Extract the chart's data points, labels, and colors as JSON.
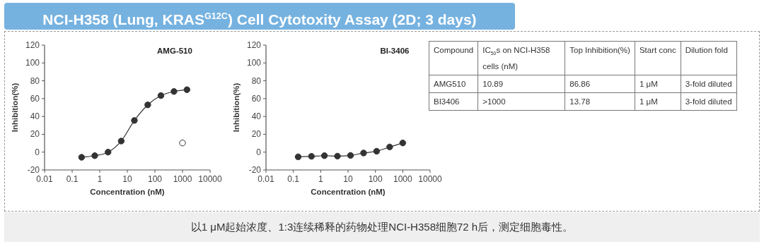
{
  "chart_data": [
    {
      "type": "line",
      "title": "AMG-510",
      "xlabel": "Concentration (nM)",
      "ylabel": "Inhibition(%)",
      "log": "x",
      "xlim": [
        0.01,
        10000
      ],
      "xticks": [
        0.01,
        0.1,
        1,
        10,
        100,
        1000,
        10000
      ],
      "ylim": [
        -20,
        120
      ],
      "yticks": [
        -20,
        0,
        20,
        40,
        60,
        80,
        100,
        120
      ],
      "marker": "circle",
      "grid": false,
      "series": [
        {
          "type": "line",
          "color": "#333333",
          "x": [
            0.22,
            0.66,
            2,
            6,
            18,
            55,
            165,
            490,
            1450
          ],
          "values": [
            -5.8,
            -4,
            0,
            12.4,
            35.5,
            53,
            63.4,
            68,
            70
          ]
        },
        {
          "type": "scatter",
          "color": "#333333",
          "x": [
            1000
          ],
          "values": [
            10.3
          ]
        }
      ]
    },
    {
      "type": "line",
      "title": "BI-3406",
      "xlabel": "Concentration (nM)",
      "ylabel": "Inhibition(%)",
      "log": "x",
      "xlim": [
        0.01,
        10000
      ],
      "xticks": [
        0.01,
        0.1,
        1,
        10,
        100,
        1000,
        10000
      ],
      "ylim": [
        -20,
        120
      ],
      "yticks": [
        -20,
        0,
        20,
        40,
        60,
        80,
        100,
        120
      ],
      "marker": "circle",
      "grid": false,
      "series": [
        {
          "type": "line",
          "color": "#333333",
          "x": [
            0.15,
            0.46,
            1.37,
            4.1,
            12.3,
            37,
            111,
            333,
            1000
          ],
          "values": [
            -5.3,
            -4.7,
            -4,
            -4.5,
            -3.7,
            -1,
            1,
            5.8,
            10.3
          ]
        }
      ]
    },
    {
      "type": "other",
      "title": "NCI-H358 (Lung, KRAS$^{G12C}$) Cell Cytotoxity Assay (2D; 3 days)",
      "categories": [
        "Compound",
        "IC$_{50}$s on NCI-H358 cells (nM)",
        "Top Inhibition(%)",
        "Start conc",
        "Dilution fold"
      ],
      "cells": [
        [
          "AMG510",
          "10.89",
          "86.86",
          "1 μM",
          "3-fold diluted"
        ],
        [
          "BI3406",
          ">1000",
          "13.78",
          "1 μM",
          "3-fold diluted"
        ]
      ],
      "annotations": [
        "以1 μM起始浓度、1:3连续稀释的药物处理NCI-H358细胞72 h后，测定细胞毒性。"
      ]
    }
  ]
}
